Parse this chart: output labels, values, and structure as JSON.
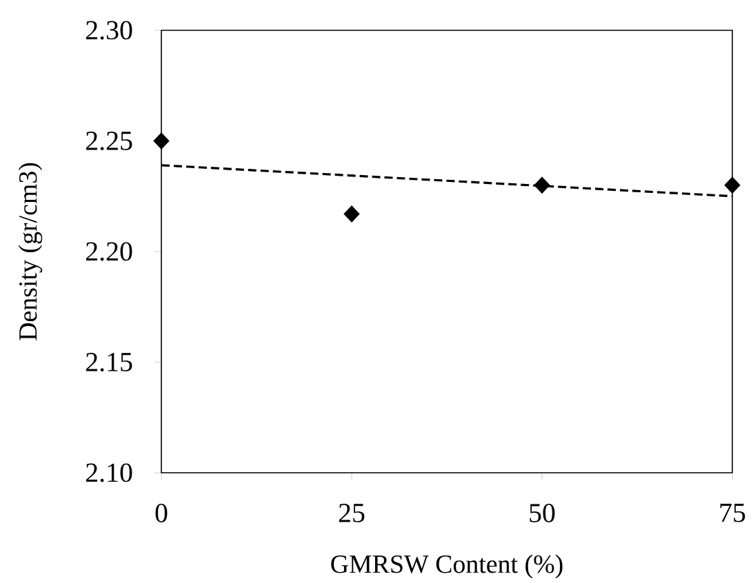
{
  "chart_data": {
    "type": "scatter",
    "xlabel": "GMRSW Content (%)",
    "ylabel": "Density (gr/cm3)",
    "xlim": [
      0,
      75
    ],
    "xticks": [
      0,
      25,
      50,
      75
    ],
    "ylim": [
      2.1,
      2.3
    ],
    "yticks": [
      {
        "value": 2.1,
        "label": "2.10"
      },
      {
        "value": 2.15,
        "label": "2.15"
      },
      {
        "value": 2.2,
        "label": "2.20"
      },
      {
        "value": 2.25,
        "label": "2.25"
      },
      {
        "value": 2.3,
        "label": "2.30"
      }
    ],
    "grid": false,
    "series": [
      {
        "color": "#000000",
        "marker": "diamond",
        "x": [
          0,
          25,
          50,
          75
        ],
        "values": [
          2.25,
          2.217,
          2.23,
          2.23
        ]
      },
      {
        "type": "line",
        "color": "#000000",
        "line_style": "dashed",
        "marker": "none",
        "x": [
          0,
          75
        ],
        "values": [
          2.239,
          2.225
        ]
      }
    ]
  }
}
